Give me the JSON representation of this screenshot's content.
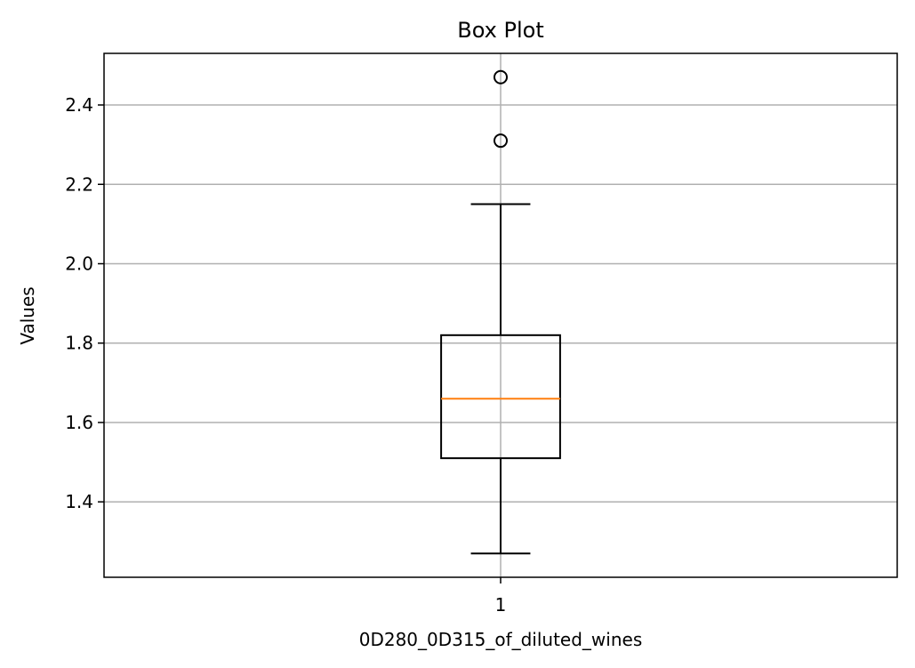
{
  "chart_data": {
    "type": "box",
    "title": "Box Plot",
    "xlabel": "0D280_0D315_of_diluted_wines",
    "ylabel": "Values",
    "categories": [
      "1"
    ],
    "ylim": [
      1.21,
      2.53
    ],
    "yticks": [
      1.4,
      1.6,
      1.8,
      2.0,
      2.2,
      2.4
    ],
    "ytick_labels": [
      "1.4",
      "1.6",
      "1.8",
      "2.0",
      "2.2",
      "2.4"
    ],
    "grid": true,
    "boxes": [
      {
        "category": "1",
        "whisker_low": 1.27,
        "q1": 1.51,
        "median": 1.66,
        "q3": 1.82,
        "whisker_high": 2.15,
        "outliers": [
          2.31,
          2.47
        ]
      }
    ],
    "colors": {
      "box": "#000000",
      "median": "#ff7f0e",
      "grid": "#b0b0b0"
    }
  }
}
